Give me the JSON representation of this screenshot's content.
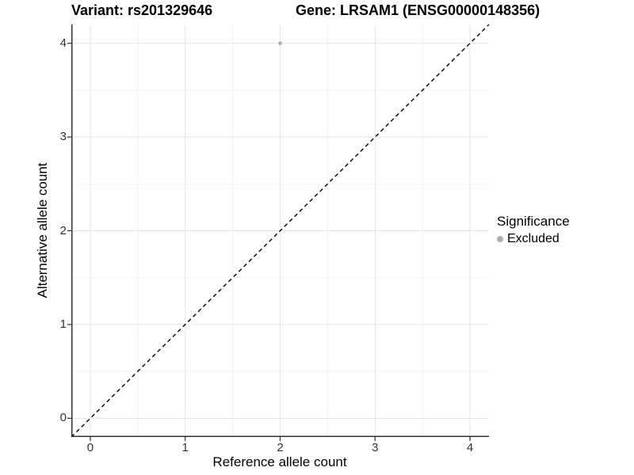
{
  "header": {
    "title_left": "Variant: rs201329646",
    "title_right": "Gene: LRSAM1 (ENSG00000148356)"
  },
  "legend": {
    "title": "Significance",
    "items": [
      {
        "label": "Excluded",
        "color": "#aeaeae"
      }
    ]
  },
  "colors": {
    "grid_major": "#e4e4e4",
    "grid_minor": "#f3f3f3",
    "axis_line": "#2f2f2f",
    "tick_mark": "#2f2f2f",
    "tick_label": "#303030",
    "identity_line": "#000000"
  },
  "chart_data": {
    "type": "scatter",
    "title_left": "Variant: rs201329646",
    "title_right": "Gene: LRSAM1 (ENSG00000148356)",
    "xlabel": "Reference allele count",
    "ylabel": "Alternative allele count",
    "xlim": [
      -0.2,
      4.2
    ],
    "ylim": [
      -0.2,
      4.2
    ],
    "xticks": [
      0,
      1,
      2,
      3,
      4
    ],
    "yticks": [
      0,
      1,
      2,
      3,
      4
    ],
    "minor_xticks": [
      0.5,
      1.5,
      2.5,
      3.5
    ],
    "minor_yticks": [
      0.5,
      1.5,
      2.5,
      3.5
    ],
    "grid": "major+minor",
    "legend_position": "right",
    "series": [
      {
        "name": "Excluded",
        "color": "#aeaeae",
        "points": [
          {
            "x": 2,
            "y": 4
          }
        ]
      }
    ],
    "identity_line": {
      "style": "dashed",
      "from": [
        -0.2,
        -0.2
      ],
      "to": [
        4.2,
        4.2
      ],
      "color": "#000000"
    }
  }
}
